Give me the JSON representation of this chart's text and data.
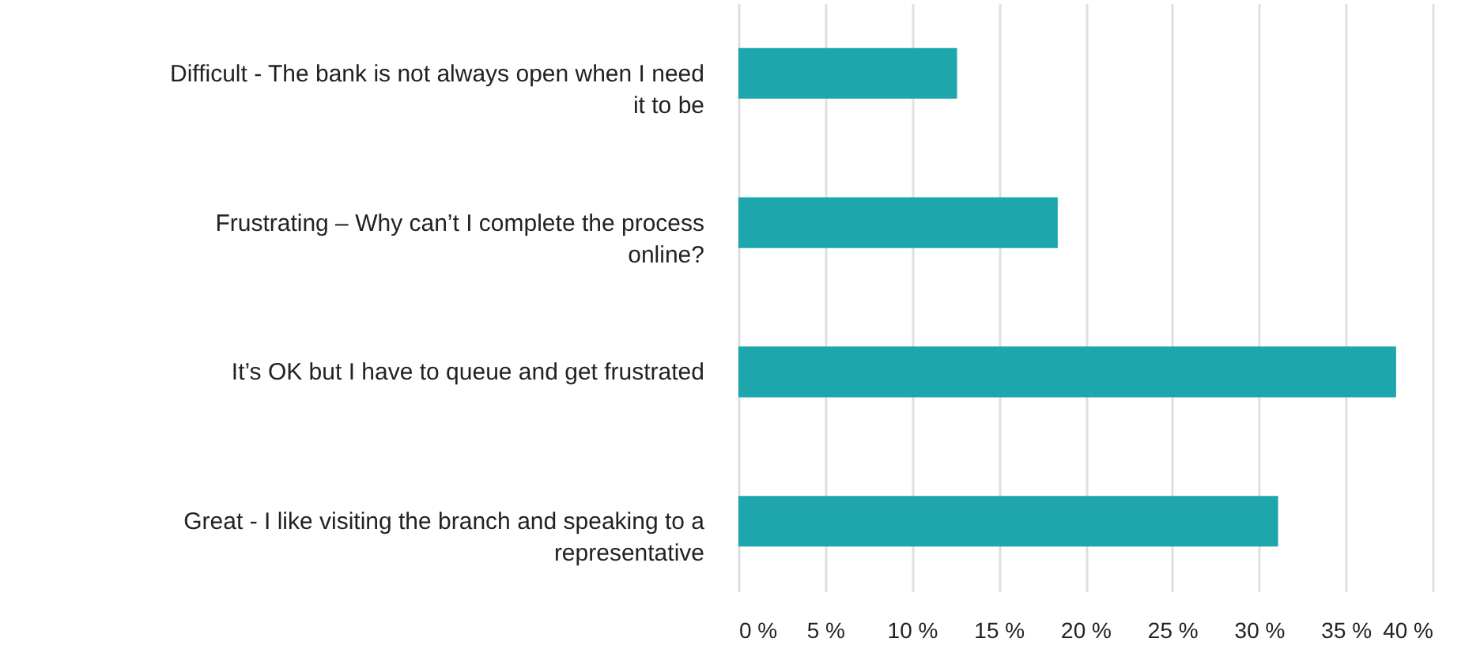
{
  "chart_data": {
    "type": "bar",
    "orientation": "horizontal",
    "categories": [
      "Difficult -  The bank is not always open when I need it to be",
      "Frustrating – Why can’t I complete the process online?",
      "It’s OK but I have to queue and get frustrated",
      "Great - I like visiting the branch and speaking to a representative"
    ],
    "values": [
      12.6,
      18.4,
      37.9,
      31.1
    ],
    "color": "#1da7ad",
    "xlim": [
      0,
      40
    ],
    "xticks": [
      {
        "value": 0,
        "label": "0 %"
      },
      {
        "value": 5,
        "label": "5 %"
      },
      {
        "value": 10,
        "label": "10 %"
      },
      {
        "value": 15,
        "label": "15 %"
      },
      {
        "value": 20,
        "label": "20 %"
      },
      {
        "value": 25,
        "label": "25 %"
      },
      {
        "value": 30,
        "label": "30 %"
      },
      {
        "value": 35,
        "label": "35 %"
      },
      {
        "value": 40,
        "label": "40 %"
      }
    ],
    "grid": "x"
  }
}
